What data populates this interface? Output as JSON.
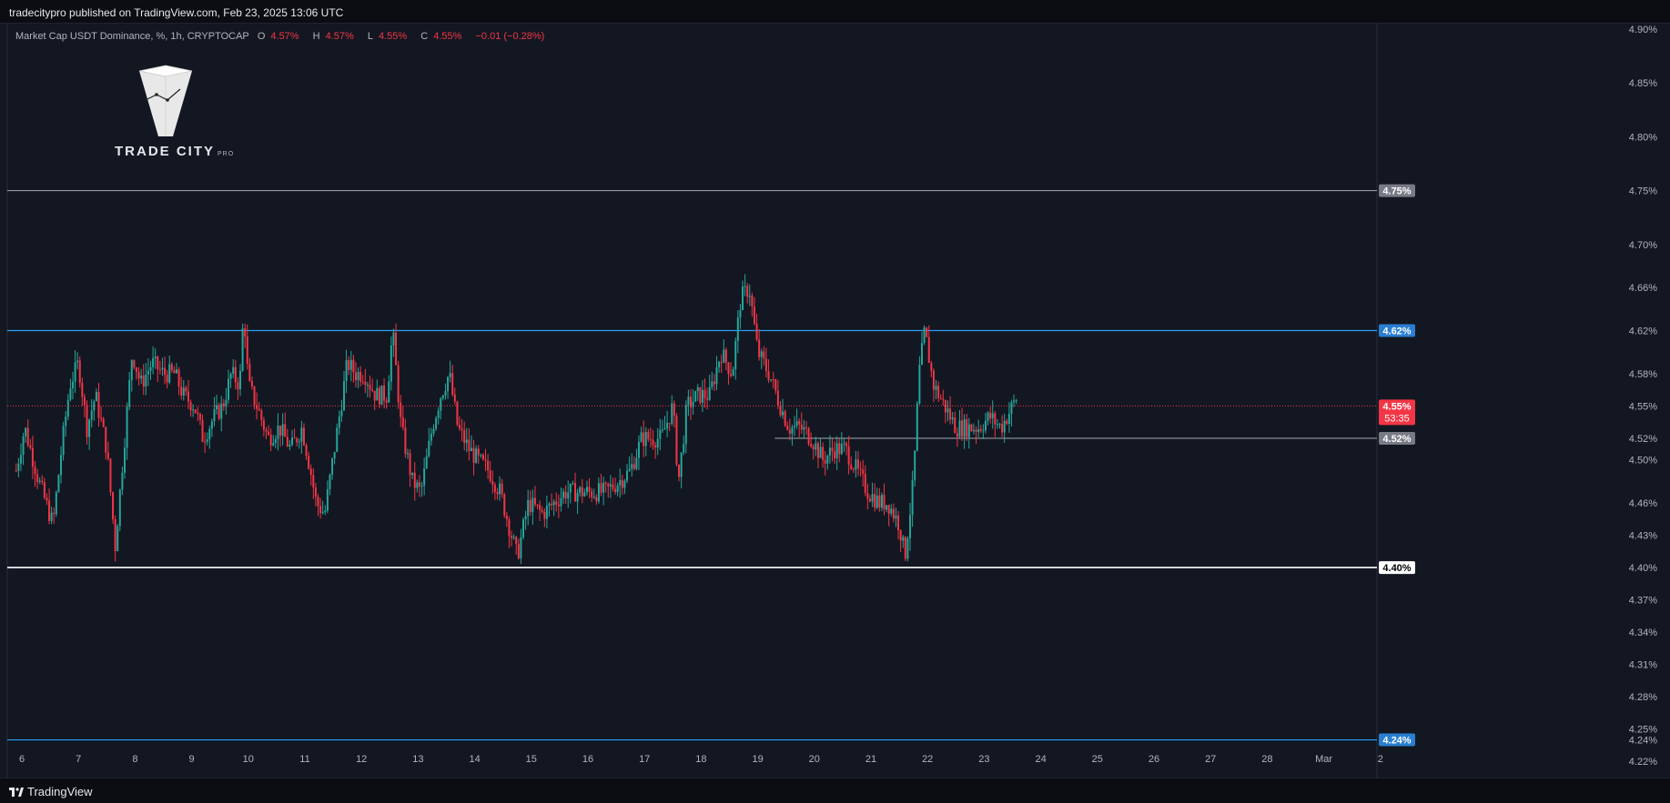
{
  "header": {
    "publisher_text": "tradecitypro published on TradingView.com, Feb 23, 2025 13:06 UTC"
  },
  "legend": {
    "symbol": "Market Cap USDT Dominance, %, 1h, CRYPTOCAP",
    "o_label": "O",
    "o_value": "4.57%",
    "h_label": "H",
    "h_value": "4.57%",
    "l_label": "L",
    "l_value": "4.55%",
    "c_label": "C",
    "c_value": "4.55%",
    "change": "−0.01 (−0.28%)"
  },
  "logo": {
    "name": "TRADE CITY",
    "sub": "PRO"
  },
  "footer": {
    "brand": "TradingView"
  },
  "colors": {
    "background": "#131722",
    "up": "#26a69a",
    "down": "#f23645",
    "blue_level": "#2962ff",
    "gray_level": "#787b86",
    "white_level": "#ffffff"
  },
  "chart_data": {
    "type": "candlestick",
    "ylim": [
      4.205,
      4.905
    ],
    "y_ticks": [
      "4.90%",
      "4.85%",
      "4.80%",
      "4.75%",
      "4.70%",
      "4.66%",
      "4.62%",
      "4.58%",
      "4.55%",
      "4.52%",
      "4.50%",
      "4.46%",
      "4.43%",
      "4.40%",
      "4.37%",
      "4.34%",
      "4.31%",
      "4.28%",
      "4.25%",
      "4.24%",
      "4.22%"
    ],
    "x_ticks": [
      "6",
      "7",
      "8",
      "9",
      "10",
      "11",
      "12",
      "13",
      "14",
      "15",
      "16",
      "17",
      "18",
      "19",
      "20",
      "21",
      "22",
      "23",
      "24",
      "25",
      "26",
      "27",
      "28",
      "Mar",
      "2"
    ],
    "levels": [
      {
        "value": 4.75,
        "label": "4.75%",
        "color": "gray"
      },
      {
        "value": 4.62,
        "label": "4.62%",
        "color": "blue"
      },
      {
        "value": 4.52,
        "label": "4.52%",
        "color": "gray",
        "start_day": 19.3
      },
      {
        "value": 4.4,
        "label": "4.40%",
        "color": "white"
      },
      {
        "value": 4.24,
        "label": "4.24%",
        "color": "blue"
      }
    ],
    "current": {
      "value": 4.55,
      "label": "4.55%",
      "countdown": "53:35"
    },
    "series_path": [
      [
        5.9,
        4.49
      ],
      [
        6.05,
        4.53
      ],
      [
        6.3,
        4.48
      ],
      [
        6.55,
        4.44
      ],
      [
        6.7,
        4.51
      ],
      [
        6.85,
        4.57
      ],
      [
        7.0,
        4.59
      ],
      [
        7.15,
        4.53
      ],
      [
        7.3,
        4.56
      ],
      [
        7.5,
        4.51
      ],
      [
        7.65,
        4.42
      ],
      [
        7.75,
        4.48
      ],
      [
        7.95,
        4.6
      ],
      [
        8.1,
        4.57
      ],
      [
        8.3,
        4.59
      ],
      [
        8.5,
        4.58
      ],
      [
        8.7,
        4.58
      ],
      [
        8.85,
        4.56
      ],
      [
        9.05,
        4.55
      ],
      [
        9.2,
        4.52
      ],
      [
        9.4,
        4.54
      ],
      [
        9.55,
        4.55
      ],
      [
        9.7,
        4.58
      ],
      [
        9.85,
        4.57
      ],
      [
        9.92,
        4.64
      ],
      [
        10.0,
        4.57
      ],
      [
        10.15,
        4.55
      ],
      [
        10.35,
        4.52
      ],
      [
        10.55,
        4.53
      ],
      [
        10.75,
        4.51
      ],
      [
        10.95,
        4.53
      ],
      [
        11.1,
        4.49
      ],
      [
        11.2,
        4.46
      ],
      [
        11.35,
        4.45
      ],
      [
        11.55,
        4.52
      ],
      [
        11.75,
        4.59
      ],
      [
        11.9,
        4.58
      ],
      [
        12.05,
        4.58
      ],
      [
        12.25,
        4.56
      ],
      [
        12.45,
        4.56
      ],
      [
        12.55,
        4.62
      ],
      [
        12.7,
        4.53
      ],
      [
        12.9,
        4.48
      ],
      [
        13.05,
        4.47
      ],
      [
        13.25,
        4.53
      ],
      [
        13.4,
        4.56
      ],
      [
        13.55,
        4.58
      ],
      [
        13.7,
        4.53
      ],
      [
        13.9,
        4.51
      ],
      [
        14.05,
        4.5
      ],
      [
        14.25,
        4.49
      ],
      [
        14.45,
        4.47
      ],
      [
        14.65,
        4.43
      ],
      [
        14.75,
        4.41
      ],
      [
        14.95,
        4.46
      ],
      [
        15.2,
        4.45
      ],
      [
        15.4,
        4.46
      ],
      [
        15.6,
        4.47
      ],
      [
        15.8,
        4.47
      ],
      [
        16.05,
        4.47
      ],
      [
        16.3,
        4.47
      ],
      [
        16.55,
        4.48
      ],
      [
        16.75,
        4.49
      ],
      [
        16.95,
        4.52
      ],
      [
        17.1,
        4.52
      ],
      [
        17.3,
        4.52
      ],
      [
        17.5,
        4.55
      ],
      [
        17.6,
        4.48
      ],
      [
        17.75,
        4.55
      ],
      [
        17.95,
        4.56
      ],
      [
        18.15,
        4.56
      ],
      [
        18.35,
        4.6
      ],
      [
        18.55,
        4.58
      ],
      [
        18.7,
        4.65
      ],
      [
        18.85,
        4.66
      ],
      [
        19.0,
        4.6
      ],
      [
        19.2,
        4.58
      ],
      [
        19.4,
        4.55
      ],
      [
        19.55,
        4.53
      ],
      [
        19.75,
        4.53
      ],
      [
        19.95,
        4.52
      ],
      [
        20.15,
        4.5
      ],
      [
        20.35,
        4.51
      ],
      [
        20.55,
        4.51
      ],
      [
        20.75,
        4.49
      ],
      [
        20.95,
        4.47
      ],
      [
        21.15,
        4.46
      ],
      [
        21.3,
        4.46
      ],
      [
        21.5,
        4.44
      ],
      [
        21.6,
        4.41
      ],
      [
        21.75,
        4.48
      ],
      [
        21.85,
        4.58
      ],
      [
        21.95,
        4.62
      ],
      [
        22.1,
        4.57
      ],
      [
        22.3,
        4.55
      ],
      [
        22.5,
        4.53
      ],
      [
        22.7,
        4.53
      ],
      [
        22.9,
        4.53
      ],
      [
        23.1,
        4.54
      ],
      [
        23.3,
        4.53
      ],
      [
        23.5,
        4.55
      ],
      [
        23.6,
        4.56
      ]
    ]
  }
}
